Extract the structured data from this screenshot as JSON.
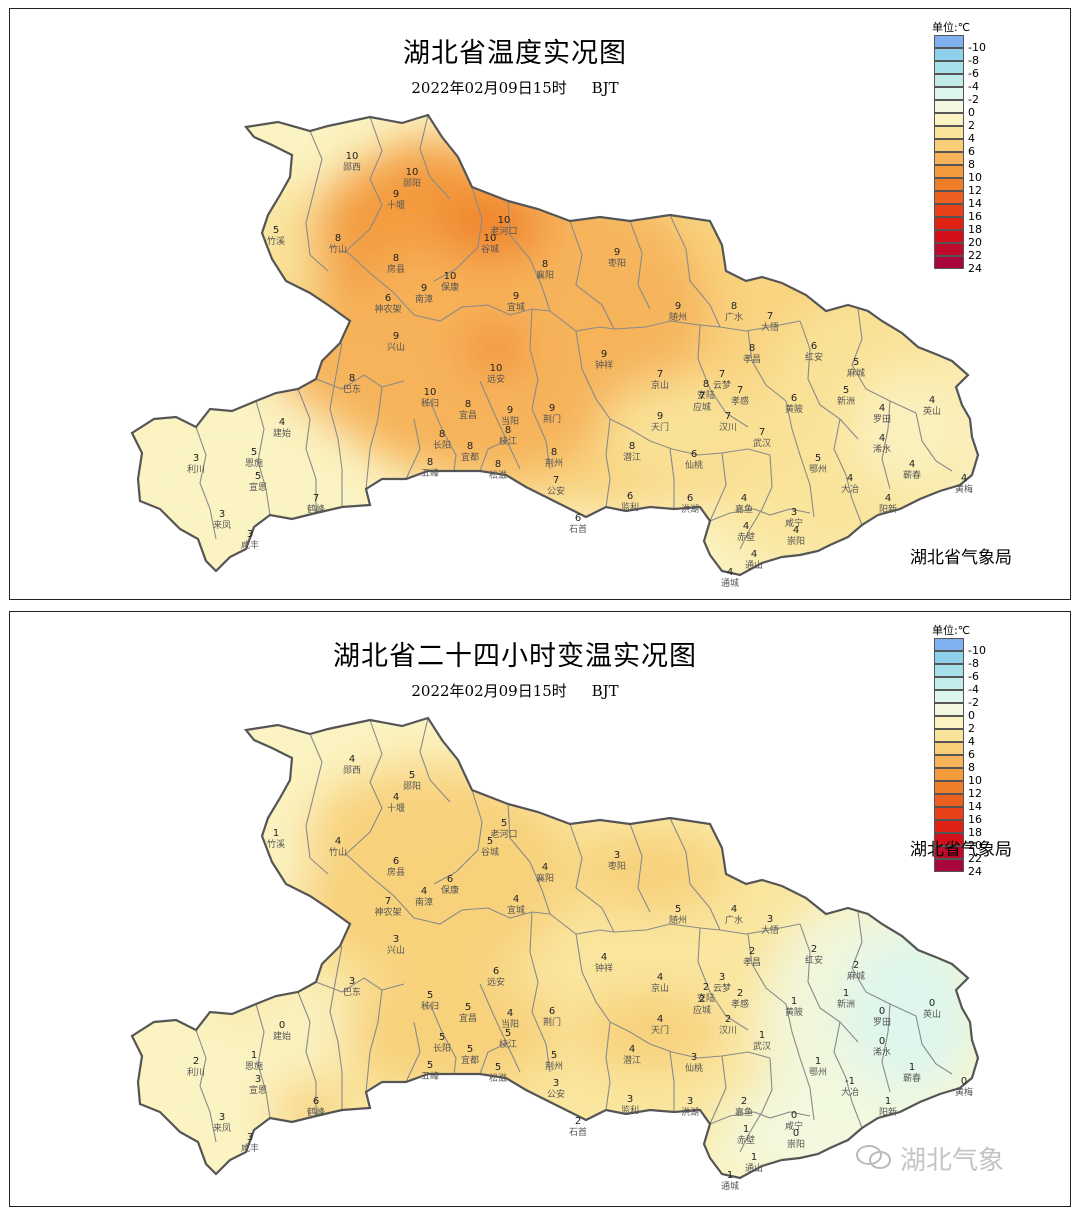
{
  "maps": [
    {
      "title": "湖北省温度实况图",
      "date": "2022年02月09日15时",
      "tz": "BJT",
      "unit": "单位:℃",
      "agency": "湖北省气象局",
      "legend": [
        {
          "label": "-10",
          "color": "#7fb1f0"
        },
        {
          "label": "-8",
          "color": "#8fd0ec"
        },
        {
          "label": "-6",
          "color": "#a6e0ea"
        },
        {
          "label": "-4",
          "color": "#c2ecea"
        },
        {
          "label": "-2",
          "color": "#dcf6ee"
        },
        {
          "label": "0",
          "color": "#f2f9e0"
        },
        {
          "label": "2",
          "color": "#fbf3c2"
        },
        {
          "label": "4",
          "color": "#fae49a"
        },
        {
          "label": "6",
          "color": "#f8cf78"
        },
        {
          "label": "8",
          "color": "#f6b35a"
        },
        {
          "label": "10",
          "color": "#f39a3c"
        },
        {
          "label": "12",
          "color": "#f07e28"
        },
        {
          "label": "14",
          "color": "#ec5f1e"
        },
        {
          "label": "16",
          "color": "#e84018"
        },
        {
          "label": "18",
          "color": "#e02214"
        },
        {
          "label": "20",
          "color": "#d40f1c"
        },
        {
          "label": "22",
          "color": "#c00a2c"
        },
        {
          "label": "24",
          "color": "#a8063a"
        }
      ],
      "stations": [
        {
          "name": "郧西",
          "value": "10"
        },
        {
          "name": "郧阳",
          "value": "10"
        },
        {
          "name": "十堰",
          "value": "9"
        },
        {
          "name": "竹溪",
          "value": "5"
        },
        {
          "name": "竹山",
          "value": "8"
        },
        {
          "name": "房县",
          "value": "8"
        },
        {
          "name": "老河口",
          "value": "10"
        },
        {
          "name": "谷城",
          "value": "10"
        },
        {
          "name": "襄阳",
          "value": "8"
        },
        {
          "name": "枣阳",
          "value": "9"
        },
        {
          "name": "保康",
          "value": "10"
        },
        {
          "name": "南漳",
          "value": "9"
        },
        {
          "name": "宜城",
          "value": "9"
        },
        {
          "name": "随州",
          "value": "9"
        },
        {
          "name": "广水",
          "value": "8"
        },
        {
          "name": "大悟",
          "value": "7"
        },
        {
          "name": "神农架",
          "value": "6"
        },
        {
          "name": "兴山",
          "value": "9"
        },
        {
          "name": "远安",
          "value": "10"
        },
        {
          "name": "钟祥",
          "value": "9"
        },
        {
          "name": "京山",
          "value": "7"
        },
        {
          "name": "安陆",
          "value": "8"
        },
        {
          "name": "孝昌",
          "value": "8"
        },
        {
          "name": "红安",
          "value": "6"
        },
        {
          "name": "麻城",
          "value": "5"
        },
        {
          "name": "巴东",
          "value": "8"
        },
        {
          "name": "秭归",
          "value": "10"
        },
        {
          "name": "宜昌",
          "value": "8"
        },
        {
          "name": "当阳",
          "value": "9"
        },
        {
          "name": "荆门",
          "value": "9"
        },
        {
          "name": "天门",
          "value": "9"
        },
        {
          "name": "应城",
          "value": "7"
        },
        {
          "name": "云梦",
          "value": "7"
        },
        {
          "name": "孝感",
          "value": "7"
        },
        {
          "name": "黄陂",
          "value": "6"
        },
        {
          "name": "新洲",
          "value": "5"
        },
        {
          "name": "罗田",
          "value": "4"
        },
        {
          "name": "英山",
          "value": "4"
        },
        {
          "name": "建始",
          "value": "4"
        },
        {
          "name": "恩施",
          "value": "5"
        },
        {
          "name": "利川",
          "value": "3"
        },
        {
          "name": "长阳",
          "value": "8"
        },
        {
          "name": "宜都",
          "value": "8"
        },
        {
          "name": "枝江",
          "value": "8"
        },
        {
          "name": "荆州",
          "value": "8"
        },
        {
          "name": "潜江",
          "value": "8"
        },
        {
          "name": "仙桃",
          "value": "6"
        },
        {
          "name": "汉川",
          "value": "7"
        },
        {
          "name": "武汉",
          "value": "7"
        },
        {
          "name": "鄂州",
          "value": "5"
        },
        {
          "name": "浠水",
          "value": "4"
        },
        {
          "name": "蕲春",
          "value": "4"
        },
        {
          "name": "黄梅",
          "value": "4"
        },
        {
          "name": "宣恩",
          "value": "5"
        },
        {
          "name": "鹤峰",
          "value": "7"
        },
        {
          "name": "五峰",
          "value": "8"
        },
        {
          "name": "松滋",
          "value": "8"
        },
        {
          "name": "公安",
          "value": "7"
        },
        {
          "name": "石首",
          "value": "6"
        },
        {
          "name": "监利",
          "value": "6"
        },
        {
          "name": "洪湖",
          "value": "6"
        },
        {
          "name": "嘉鱼",
          "value": "4"
        },
        {
          "name": "咸宁",
          "value": "3"
        },
        {
          "name": "大冶",
          "value": "4"
        },
        {
          "name": "阳新",
          "value": "4"
        },
        {
          "name": "来凤",
          "value": "3"
        },
        {
          "name": "咸丰",
          "value": "3"
        },
        {
          "name": "赤壁",
          "value": "4"
        },
        {
          "name": "崇阳",
          "value": "4"
        },
        {
          "name": "通山",
          "value": "4"
        },
        {
          "name": "通城",
          "value": "4"
        }
      ]
    },
    {
      "title": "湖北省二十四小时变温实况图",
      "date": "2022年02月09日15时",
      "tz": "BJT",
      "unit": "单位:℃",
      "agency": "湖北省气象局",
      "legend": [
        {
          "label": "-10",
          "color": "#7fb1f0"
        },
        {
          "label": "-8",
          "color": "#8fd0ec"
        },
        {
          "label": "-6",
          "color": "#a6e0ea"
        },
        {
          "label": "-4",
          "color": "#c2ecea"
        },
        {
          "label": "-2",
          "color": "#dcf6ee"
        },
        {
          "label": "0",
          "color": "#f2f9e0"
        },
        {
          "label": "2",
          "color": "#fbf3c2"
        },
        {
          "label": "4",
          "color": "#fae49a"
        },
        {
          "label": "6",
          "color": "#f8cf78"
        },
        {
          "label": "8",
          "color": "#f6b35a"
        },
        {
          "label": "10",
          "color": "#f39a3c"
        },
        {
          "label": "12",
          "color": "#f07e28"
        },
        {
          "label": "14",
          "color": "#ec5f1e"
        },
        {
          "label": "16",
          "color": "#e84018"
        },
        {
          "label": "18",
          "color": "#e02214"
        },
        {
          "label": "20",
          "color": "#d40f1c"
        },
        {
          "label": "22",
          "color": "#c00a2c"
        },
        {
          "label": "24",
          "color": "#a8063a"
        }
      ],
      "stations": [
        {
          "name": "郧西",
          "value": "4"
        },
        {
          "name": "郧阳",
          "value": "5"
        },
        {
          "name": "十堰",
          "value": "4"
        },
        {
          "name": "竹溪",
          "value": "1"
        },
        {
          "name": "竹山",
          "value": "4"
        },
        {
          "name": "房县",
          "value": "6"
        },
        {
          "name": "老河口",
          "value": "5"
        },
        {
          "name": "谷城",
          "value": "5"
        },
        {
          "name": "襄阳",
          "value": "4"
        },
        {
          "name": "枣阳",
          "value": "3"
        },
        {
          "name": "保康",
          "value": "6"
        },
        {
          "name": "南漳",
          "value": "4"
        },
        {
          "name": "宜城",
          "value": "4"
        },
        {
          "name": "随州",
          "value": "5"
        },
        {
          "name": "广水",
          "value": "4"
        },
        {
          "name": "大悟",
          "value": "3"
        },
        {
          "name": "神农架",
          "value": "7"
        },
        {
          "name": "兴山",
          "value": "3"
        },
        {
          "name": "远安",
          "value": "6"
        },
        {
          "name": "钟祥",
          "value": "4"
        },
        {
          "name": "京山",
          "value": "4"
        },
        {
          "name": "安陆",
          "value": "2"
        },
        {
          "name": "孝昌",
          "value": "2"
        },
        {
          "name": "红安",
          "value": "2"
        },
        {
          "name": "麻城",
          "value": "2"
        },
        {
          "name": "巴东",
          "value": "3"
        },
        {
          "name": "秭归",
          "value": "5"
        },
        {
          "name": "宜昌",
          "value": "5"
        },
        {
          "name": "当阳",
          "value": "4"
        },
        {
          "name": "荆门",
          "value": "6"
        },
        {
          "name": "天门",
          "value": "4"
        },
        {
          "name": "应城",
          "value": "2"
        },
        {
          "name": "云梦",
          "value": "3"
        },
        {
          "name": "孝感",
          "value": "2"
        },
        {
          "name": "黄陂",
          "value": "1"
        },
        {
          "name": "新洲",
          "value": "1"
        },
        {
          "name": "罗田",
          "value": "0"
        },
        {
          "name": "英山",
          "value": "0"
        },
        {
          "name": "建始",
          "value": "0"
        },
        {
          "name": "恩施",
          "value": "1"
        },
        {
          "name": "利川",
          "value": "2"
        },
        {
          "name": "长阳",
          "value": "5"
        },
        {
          "name": "宜都",
          "value": "5"
        },
        {
          "name": "枝江",
          "value": "5"
        },
        {
          "name": "荆州",
          "value": "5"
        },
        {
          "name": "潜江",
          "value": "4"
        },
        {
          "name": "仙桃",
          "value": "3"
        },
        {
          "name": "汉川",
          "value": "2"
        },
        {
          "name": "武汉",
          "value": "1"
        },
        {
          "name": "鄂州",
          "value": "1"
        },
        {
          "name": "浠水",
          "value": "0"
        },
        {
          "name": "蕲春",
          "value": "1"
        },
        {
          "name": "黄梅",
          "value": "0"
        },
        {
          "name": "宣恩",
          "value": "3"
        },
        {
          "name": "鹤峰",
          "value": "6"
        },
        {
          "name": "五峰",
          "value": "5"
        },
        {
          "name": "松滋",
          "value": "5"
        },
        {
          "name": "公安",
          "value": "3"
        },
        {
          "name": "石首",
          "value": "2"
        },
        {
          "name": "监利",
          "value": "3"
        },
        {
          "name": "洪湖",
          "value": "3"
        },
        {
          "name": "嘉鱼",
          "value": "2"
        },
        {
          "name": "咸宁",
          "value": "0"
        },
        {
          "name": "大冶",
          "value": "-1"
        },
        {
          "name": "阳新",
          "value": "1"
        },
        {
          "name": "来凤",
          "value": "3"
        },
        {
          "name": "咸丰",
          "value": "3"
        },
        {
          "name": "赤壁",
          "value": "1"
        },
        {
          "name": "崇阳",
          "value": "0"
        },
        {
          "name": "通山",
          "value": "1"
        },
        {
          "name": "通城",
          "value": "1"
        }
      ]
    }
  ],
  "watermark": "湖北气象"
}
